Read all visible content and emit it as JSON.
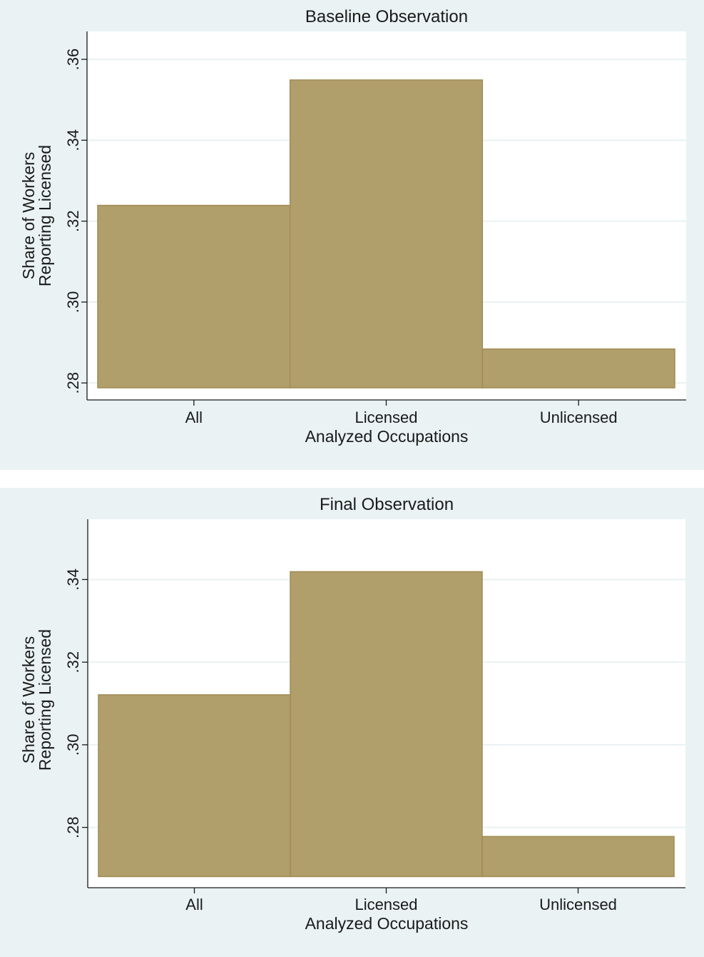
{
  "colors": {
    "background": "#eaf2f3",
    "plot_area": "#ffffff",
    "bar_fill": "#b09e6b",
    "bar_stroke": "#a08c55",
    "gridline": "#e9f1f2",
    "axis": "#1a1a1a"
  },
  "chart_data": [
    {
      "type": "bar",
      "title": "Baseline Observation",
      "xlabel": "Analyzed Occupations",
      "ylabel": [
        "Share of Workers",
        "Reporting Licensed"
      ],
      "categories": [
        "All",
        "Licensed",
        "Unlicensed"
      ],
      "values": [
        0.3239,
        0.3549,
        0.2884
      ],
      "base": 0.2788,
      "ylim": [
        0.2758,
        0.3669
      ],
      "yticks": [
        0.28,
        0.3,
        0.32,
        0.34,
        0.36
      ],
      "ytick_labels": [
        ".28",
        ".30",
        ".32",
        ".34",
        ".36"
      ],
      "grid": true,
      "legend": "none"
    },
    {
      "type": "bar",
      "title": "Final Observation",
      "xlabel": "Analyzed Occupations",
      "ylabel": [
        "Share of Workers",
        "Reporting Licensed"
      ],
      "categories": [
        "All",
        "Licensed",
        "Unlicensed"
      ],
      "values": [
        0.3121,
        0.3419,
        0.2778
      ],
      "base": 0.2681,
      "ylim": [
        0.2654,
        0.3546
      ],
      "yticks": [
        0.28,
        0.3,
        0.32,
        0.34
      ],
      "ytick_labels": [
        ".28",
        ".30",
        ".32",
        ".34"
      ],
      "grid": true,
      "legend": "none"
    }
  ]
}
